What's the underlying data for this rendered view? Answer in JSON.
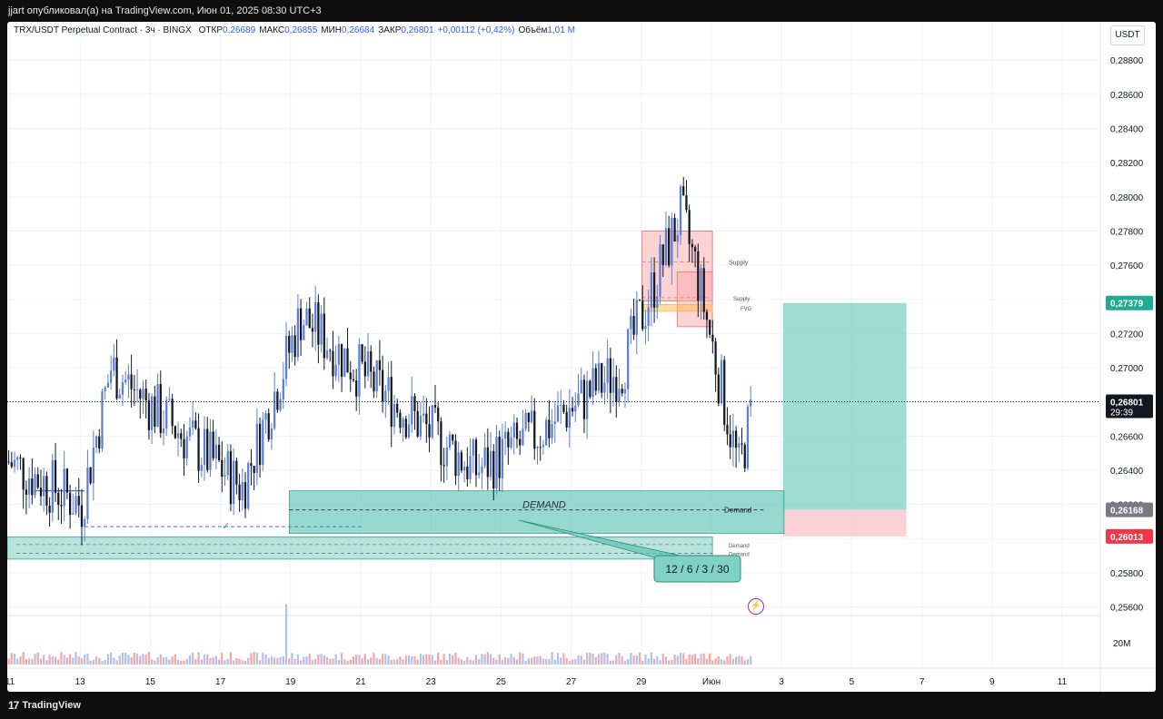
{
  "header": {
    "publish_line": "jjart опубликовал(а) на TradingView.com, Июн 01, 2025 08:30 UTC+3"
  },
  "legend": {
    "symbol": "TRX/USDT Perpetual Contract · 3ч · BINGX",
    "open_label": "ОТКР",
    "open": "0,26689",
    "high_label": "МАКС",
    "high": "0,26855",
    "low_label": "МИН",
    "low": "0,26684",
    "close_label": "ЗАКР",
    "close": "0,26801",
    "change": "+0,00112 (+0,42%)",
    "volume_label": "Объём",
    "volume": "1,01 M"
  },
  "price_axis": {
    "unit": "USDT",
    "ticks": [
      "0,28800",
      "0,28600",
      "0,28400",
      "0,28200",
      "0,28000",
      "0,27800",
      "0,27600",
      "0,27400",
      "0,27200",
      "0,27000",
      "0,26800",
      "0,26600",
      "0,26400",
      "0,26200",
      "0,26000",
      "0,25800",
      "0,25600"
    ],
    "badges": [
      {
        "name": "target-price-badge",
        "text": "0,27379",
        "value": 0.27379,
        "color": "#22ab94"
      },
      {
        "name": "current-price-badge",
        "text": "0,26801",
        "sub": "29:39",
        "value": 0.26801,
        "color": "#131722"
      },
      {
        "name": "entry-price-badge",
        "text": "0,26168",
        "value": 0.26168,
        "color": "#787b86"
      },
      {
        "name": "stop-price-badge",
        "text": "0,26013",
        "value": 0.26013,
        "color": "#f23645"
      }
    ]
  },
  "volume_axis": {
    "label": "20M"
  },
  "time_axis": {
    "labels": [
      "11",
      "13",
      "15",
      "17",
      "19",
      "21",
      "23",
      "25",
      "27",
      "29",
      "Июн",
      "3",
      "5",
      "7",
      "9",
      "11"
    ]
  },
  "annotations": {
    "demand_big": "DEMAND",
    "demand_small_1": "Demand",
    "demand_small_2": "Demand",
    "demand_small_3": "Demand",
    "supply_1": "Supply",
    "supply_2": "Supply",
    "fvg": "FVG",
    "callout": "12 / 6 / 3 / 30",
    "check_mark": "✓"
  },
  "footer": {
    "brand": "TradingView",
    "logo_glyph": "17"
  },
  "colors": {
    "up": "#5b7fd6",
    "down": "#131722",
    "demand_fill": "#5fc4b3",
    "supply_fill": "#f7a8a8",
    "target_fill": "#7fd1c3",
    "stop_fill": "#f9c5c9"
  },
  "chart_data": {
    "type": "candlestick",
    "symbol": "TRX/USDT Perpetual Contract",
    "interval": "3ч",
    "y_range": [
      0.2555,
      0.2895
    ],
    "x_range_dates": [
      "2025-05-11",
      "2025-06-11"
    ],
    "current_price": 0.26801,
    "zones": [
      {
        "label": "DEMAND",
        "kind": "demand",
        "from": "2025-05-19",
        "to": "2025-06-01",
        "low": 0.2603,
        "high": 0.2628
      },
      {
        "label": "Demand",
        "kind": "demand",
        "from": "2025-05-11",
        "to": "2025-05-31",
        "low": 0.2588,
        "high": 0.2601
      },
      {
        "label": "Supply",
        "kind": "supply",
        "from": "2025-05-29",
        "to": "2025-05-31",
        "low": 0.2739,
        "high": 0.278
      },
      {
        "label": "Supply",
        "kind": "supply",
        "from": "2025-05-30",
        "to": "2025-05-31",
        "low": 0.2724,
        "high": 0.2756
      },
      {
        "label": "FVG",
        "kind": "fvg",
        "from": "2025-05-29",
        "to": "2025-05-31",
        "low": 0.2733,
        "high": 0.2737
      }
    ],
    "position": {
      "entry": 0.26168,
      "target": 0.27379,
      "stop": 0.26013
    },
    "candles": []
  }
}
